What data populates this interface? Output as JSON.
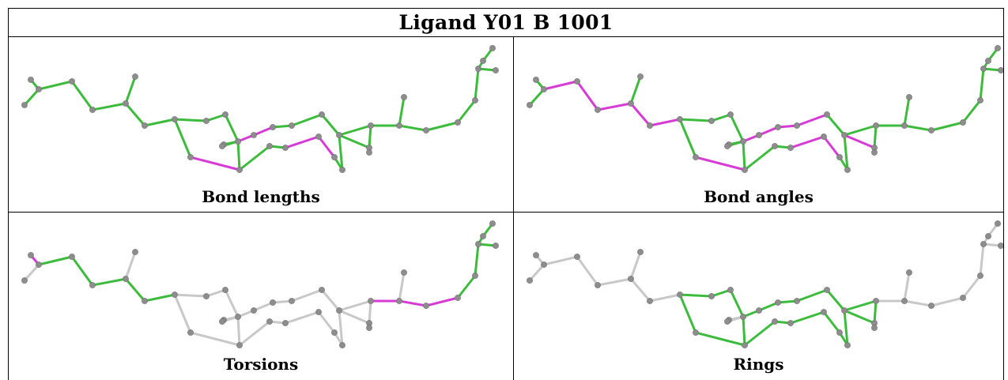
{
  "title": "Ligand Y01 B 1001",
  "panels": [
    {
      "id": "bond-lengths",
      "label": "Bond lengths"
    },
    {
      "id": "bond-angles",
      "label": "Bond angles"
    },
    {
      "id": "torsions",
      "label": "Torsions"
    },
    {
      "id": "rings",
      "label": "Rings"
    }
  ],
  "colors": {
    "ok": "#3dbb3d",
    "ok_dark": "#2c8a2c",
    "outlier": "#d63bd6",
    "outlier_dark": "#8a2a8a",
    "neutral": "#c8c8c8",
    "neutral_dark": "#8a8a8a",
    "atom": "#8d8d8d"
  }
}
